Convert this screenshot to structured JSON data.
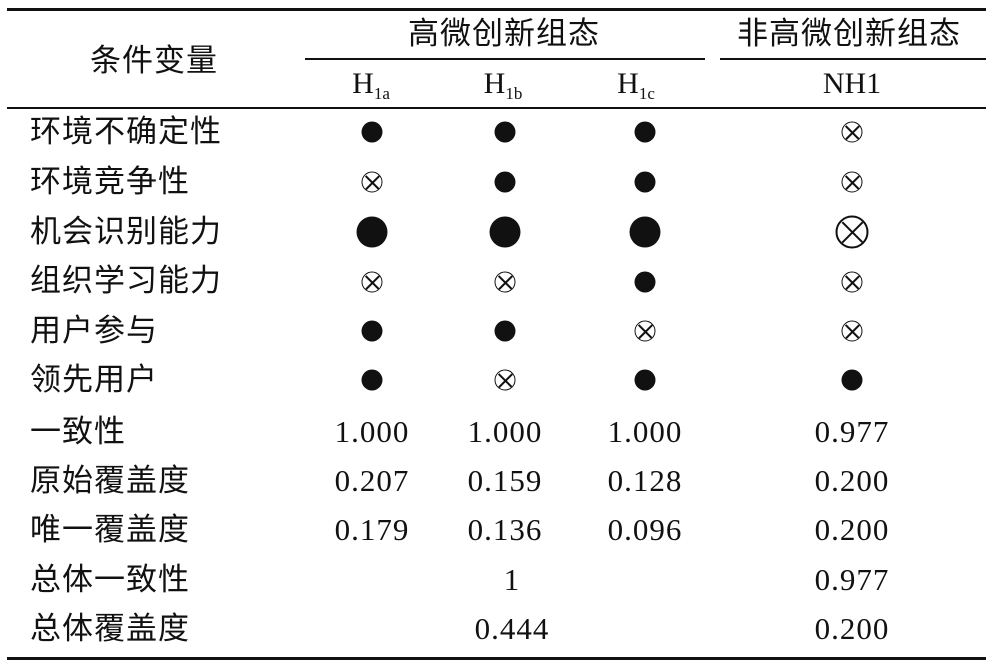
{
  "header": {
    "condition_variable": "条件变量",
    "group_high": "高微创新组态",
    "group_nonhigh": "非高微创新组态",
    "columns": [
      {
        "base": "H",
        "sub": "1a"
      },
      {
        "base": "H",
        "sub": "1b"
      },
      {
        "base": "H",
        "sub": "1c"
      },
      {
        "base": "NH1",
        "sub": ""
      }
    ]
  },
  "legend_symbols": {
    "dot": "black circle (core/peripheral condition present)",
    "cross": "circled cross (condition absent)"
  },
  "rows": [
    {
      "label": "环境不确定性",
      "cells": [
        "dot",
        "dot",
        "dot",
        "cross"
      ]
    },
    {
      "label": "环境竞争性",
      "cells": [
        "cross",
        "dot",
        "dot",
        "cross"
      ]
    },
    {
      "label": "机会识别能力",
      "cells": [
        "dot-large",
        "dot-large",
        "dot-large",
        "cross-large"
      ]
    },
    {
      "label": "组织学习能力",
      "cells": [
        "cross",
        "cross",
        "dot",
        "cross"
      ]
    },
    {
      "label": "用户参与",
      "cells": [
        "dot",
        "dot",
        "cross",
        "cross"
      ]
    },
    {
      "label": "领先用户",
      "cells": [
        "dot",
        "cross",
        "dot",
        "dot"
      ]
    }
  ],
  "metric_rows": [
    {
      "label": "一致性",
      "values": [
        "1.000",
        "1.000",
        "1.000",
        "0.977"
      ]
    },
    {
      "label": "原始覆盖度",
      "values": [
        "0.207",
        "0.159",
        "0.128",
        "0.200"
      ]
    },
    {
      "label": "唯一覆盖度",
      "values": [
        "0.179",
        "0.136",
        "0.096",
        "0.200"
      ]
    }
  ],
  "overall_rows": [
    {
      "label": "总体一致性",
      "high": "1",
      "nonhigh": "0.977"
    },
    {
      "label": "总体覆盖度",
      "high": "0.444",
      "nonhigh": "0.200"
    }
  ]
}
